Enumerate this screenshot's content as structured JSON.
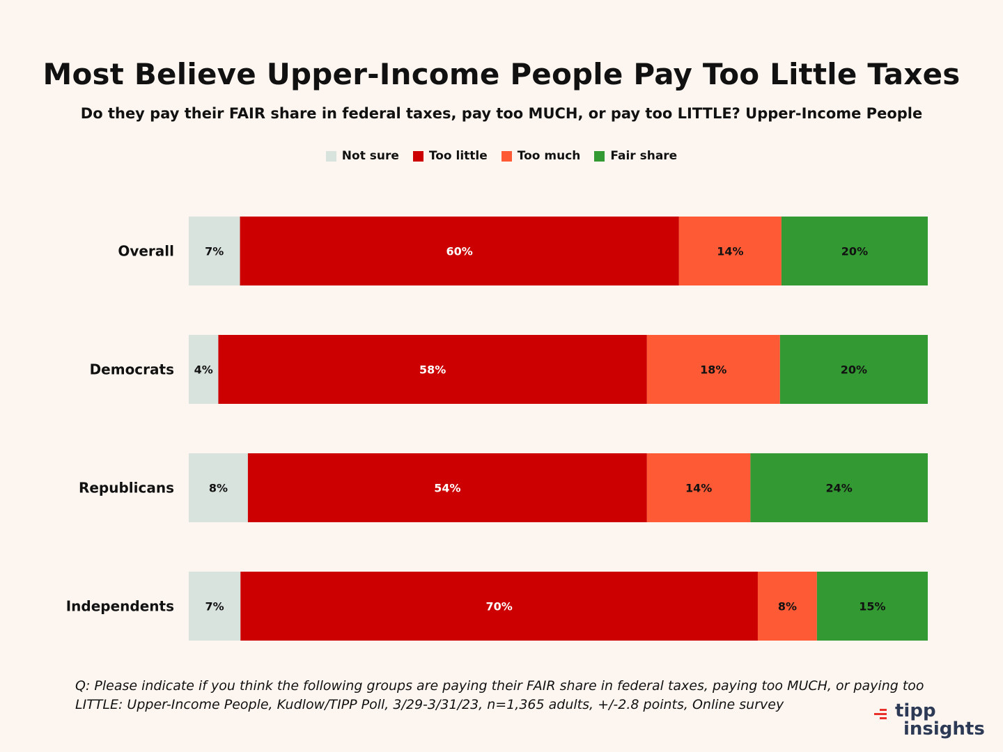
{
  "chart_data": {
    "type": "bar",
    "orientation": "horizontal",
    "stacked": true,
    "title": "Most Believe Upper-Income People Pay Too Little Taxes",
    "subtitle": "Do they pay their FAIR share in federal taxes, pay too MUCH, or pay too LITTLE? Upper-Income People",
    "categories": [
      "Overall",
      "Democrats",
      "Republicans",
      "Independents"
    ],
    "series": [
      {
        "name": "Not sure",
        "color": "#d9e3dd",
        "label_color": "#111111",
        "values": [
          7,
          4,
          8,
          7
        ]
      },
      {
        "name": "Too little",
        "color": "#cc0000",
        "label_color": "#ffffff",
        "values": [
          60,
          58,
          54,
          70
        ]
      },
      {
        "name": "Too much",
        "color": "#ff5a36",
        "label_color": "#111111",
        "values": [
          14,
          18,
          14,
          8
        ]
      },
      {
        "name": "Fair share",
        "color": "#339933",
        "label_color": "#111111",
        "values": [
          20,
          20,
          24,
          15
        ]
      }
    ],
    "value_suffix": "%",
    "legend_position": "top-center",
    "xlabel": "",
    "ylabel": "",
    "grid": false
  },
  "footnote": "Q: Please indicate if you think the following groups are paying their FAIR share in federal taxes, paying too MUCH, or paying too LITTLE: Upper-Income People, Kudlow/TIPP Poll, 3/29-3/31/23, n=1,365 adults, +/-2.8 points, Online survey",
  "logo": {
    "line1": "tipp",
    "line2": "insights"
  }
}
